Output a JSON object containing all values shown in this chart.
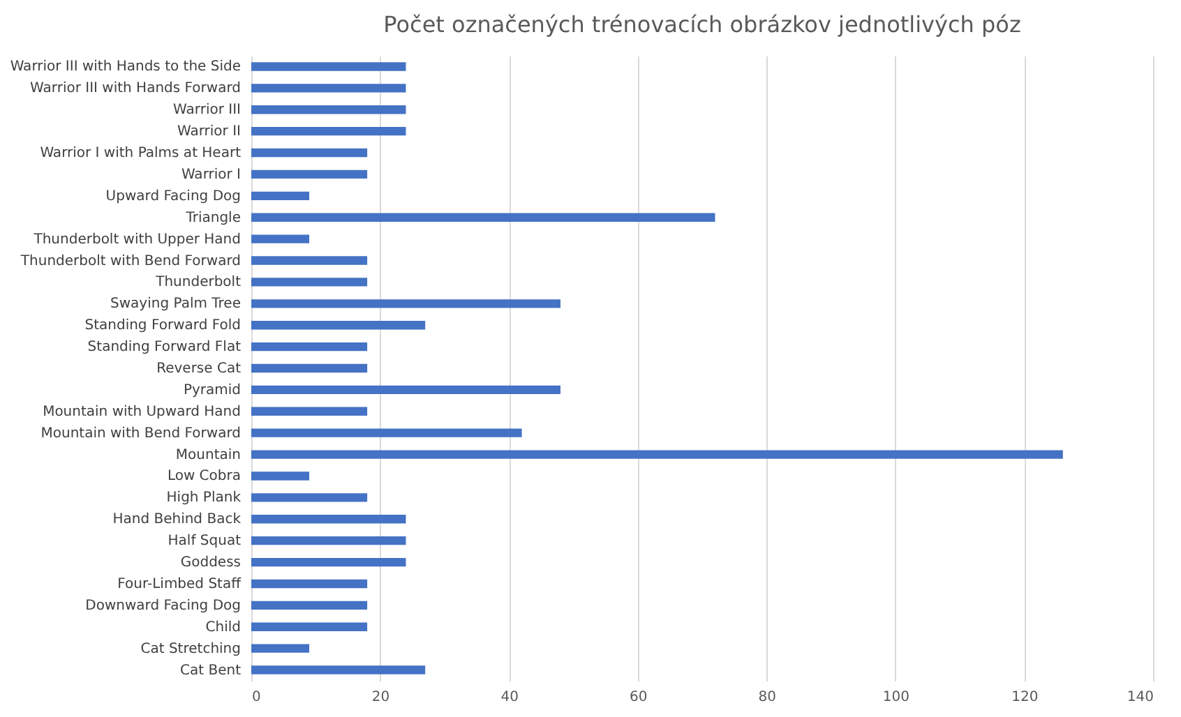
{
  "chart_data": {
    "type": "bar",
    "orientation": "horizontal",
    "title": "Počet označených trénovacích obrázkov jednotlivých póz",
    "categories": [
      "Warrior III with Hands to the Side",
      "Warrior III with Hands Forward",
      "Warrior III",
      "Warrior II",
      "Warrior I with Palms at Heart",
      "Warrior I",
      "Upward Facing Dog",
      "Triangle",
      "Thunderbolt with Upper Hand",
      "Thunderbolt with Bend Forward",
      "Thunderbolt",
      "Swaying Palm Tree",
      "Standing Forward Fold",
      "Standing Forward Flat",
      "Reverse Cat",
      "Pyramid",
      "Mountain with Upward Hand",
      "Mountain with Bend Forward",
      "Mountain",
      "Low Cobra",
      "High Plank",
      "Hand Behind Back",
      "Half Squat",
      "Goddess",
      "Four-Limbed Staff",
      "Downward Facing Dog",
      "Child",
      "Cat Stretching",
      "Cat Bent"
    ],
    "values": [
      24,
      24,
      24,
      24,
      18,
      18,
      9,
      72,
      9,
      18,
      18,
      48,
      27,
      18,
      18,
      48,
      18,
      42,
      126,
      9,
      18,
      24,
      24,
      24,
      18,
      18,
      18,
      9,
      27
    ],
    "color": "#4472c4",
    "xlim": [
      0,
      140
    ],
    "xticks": [
      0,
      20,
      40,
      60,
      80,
      100,
      120,
      140
    ],
    "grid": "x"
  }
}
